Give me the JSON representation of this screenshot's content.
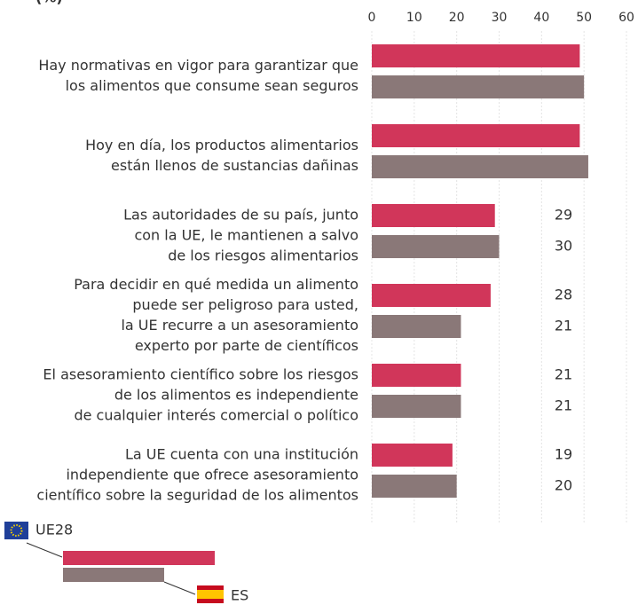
{
  "chart_data": {
    "type": "barh",
    "title": "(%)",
    "categories": [
      [
        "Hay normativas en vigor para garantizar que",
        "los alimentos que consume sean seguros"
      ],
      [
        "Hoy en día, los productos alimentarios",
        "están llenos de sustancias dañinas"
      ],
      [
        "Las autoridades de su país, junto",
        "con la UE, le mantienen a salvo",
        "de los riesgos alimentarios"
      ],
      [
        "Para decidir en qué medida un alimento",
        "puede ser peligroso para usted,",
        "la UE recurre a un asesoramiento",
        "experto por parte de científicos"
      ],
      [
        "El asesoramiento científico sobre los riesgos",
        "de los alimentos es independiente",
        "de cualquier interés comercial o político"
      ],
      [
        "La UE cuenta con una institución",
        "independiente que ofrece asesoramiento",
        "científico sobre la seguridad de los alimentos"
      ]
    ],
    "series": [
      {
        "name": "UE28",
        "color": "#d1365a",
        "values": [
          49,
          49,
          29,
          28,
          21,
          19
        ],
        "value_labels": [
          null,
          null,
          "29",
          "28",
          "21",
          "19"
        ]
      },
      {
        "name": "ES",
        "color": "#8a7878",
        "values": [
          50,
          51,
          30,
          21,
          21,
          20
        ],
        "value_labels": [
          null,
          null,
          "30",
          "21",
          "21",
          "20"
        ]
      }
    ],
    "xlim": [
      0,
      60
    ],
    "xticks": [
      0,
      10,
      20,
      30,
      40,
      50,
      60
    ],
    "grid": true
  }
}
